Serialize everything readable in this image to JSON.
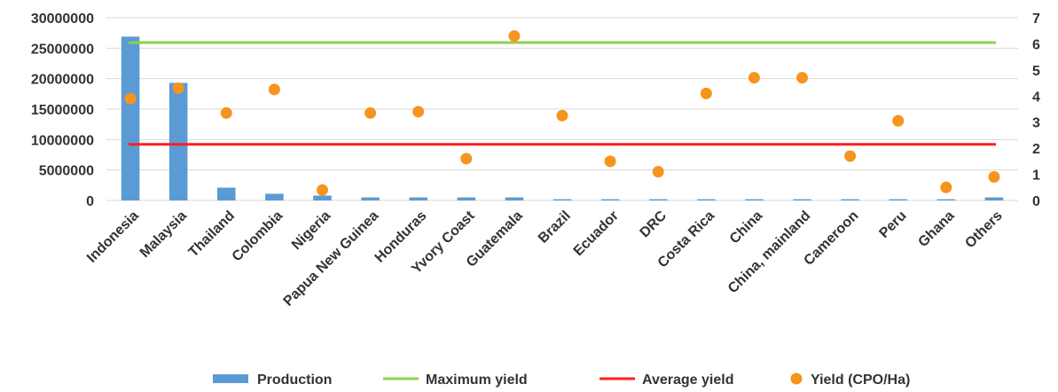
{
  "chart_data": {
    "type": "bar",
    "categories": [
      "Indonesia",
      "Malaysia",
      "Thailand",
      "Colombia",
      "Nigeria",
      "Papua New Guinea",
      "Honduras",
      "Yvory Coast",
      "Guatemala",
      "Brazil",
      "Ecuador",
      "DRC",
      "Costa Rica",
      "China",
      "China, mainland",
      "Cameroon",
      "Peru",
      "Ghana",
      "Others"
    ],
    "ylim": [
      0,
      30000000
    ],
    "y_ticks": [
      "0",
      "5000000",
      "10000000",
      "15000000",
      "20000000",
      "25000000",
      "30000000"
    ],
    "y2lim": [
      0,
      7
    ],
    "y2_ticks": [
      "0",
      "1",
      "2",
      "3",
      "4",
      "5",
      "6",
      "7"
    ],
    "legend_position": "bottom",
    "grid": "horizontal",
    "series": [
      {
        "name": "Production",
        "type": "bar",
        "axis": "left",
        "color": "#5b9bd5",
        "values": [
          26900000,
          19300000,
          2100000,
          1100000,
          800000,
          500000,
          500000,
          500000,
          500000,
          200000,
          200000,
          200000,
          200000,
          200000,
          200000,
          200000,
          200000,
          200000,
          500000
        ]
      },
      {
        "name": "Maximum yield",
        "type": "line",
        "axis": "right",
        "color": "#8fd14f",
        "values": [
          6.05,
          6.05,
          6.05,
          6.05,
          6.05,
          6.05,
          6.05,
          6.05,
          6.05,
          6.05,
          6.05,
          6.05,
          6.05,
          6.05,
          6.05,
          6.05,
          6.05,
          6.05,
          6.05
        ]
      },
      {
        "name": "Average yield",
        "type": "line",
        "axis": "right",
        "color": "#ff1f1f",
        "values": [
          2.15,
          2.15,
          2.15,
          2.15,
          2.15,
          2.15,
          2.15,
          2.15,
          2.15,
          2.15,
          2.15,
          2.15,
          2.15,
          2.15,
          2.15,
          2.15,
          2.15,
          2.15,
          2.15
        ]
      },
      {
        "name": "Yield (CPO/Ha)",
        "type": "scatter",
        "axis": "right",
        "color": "#f7941d",
        "values": [
          3.9,
          4.3,
          3.35,
          4.25,
          0.4,
          3.35,
          3.4,
          1.6,
          6.3,
          3.25,
          1.5,
          1.1,
          4.1,
          4.7,
          4.7,
          1.7,
          3.05,
          0.5,
          0.9
        ]
      }
    ]
  }
}
